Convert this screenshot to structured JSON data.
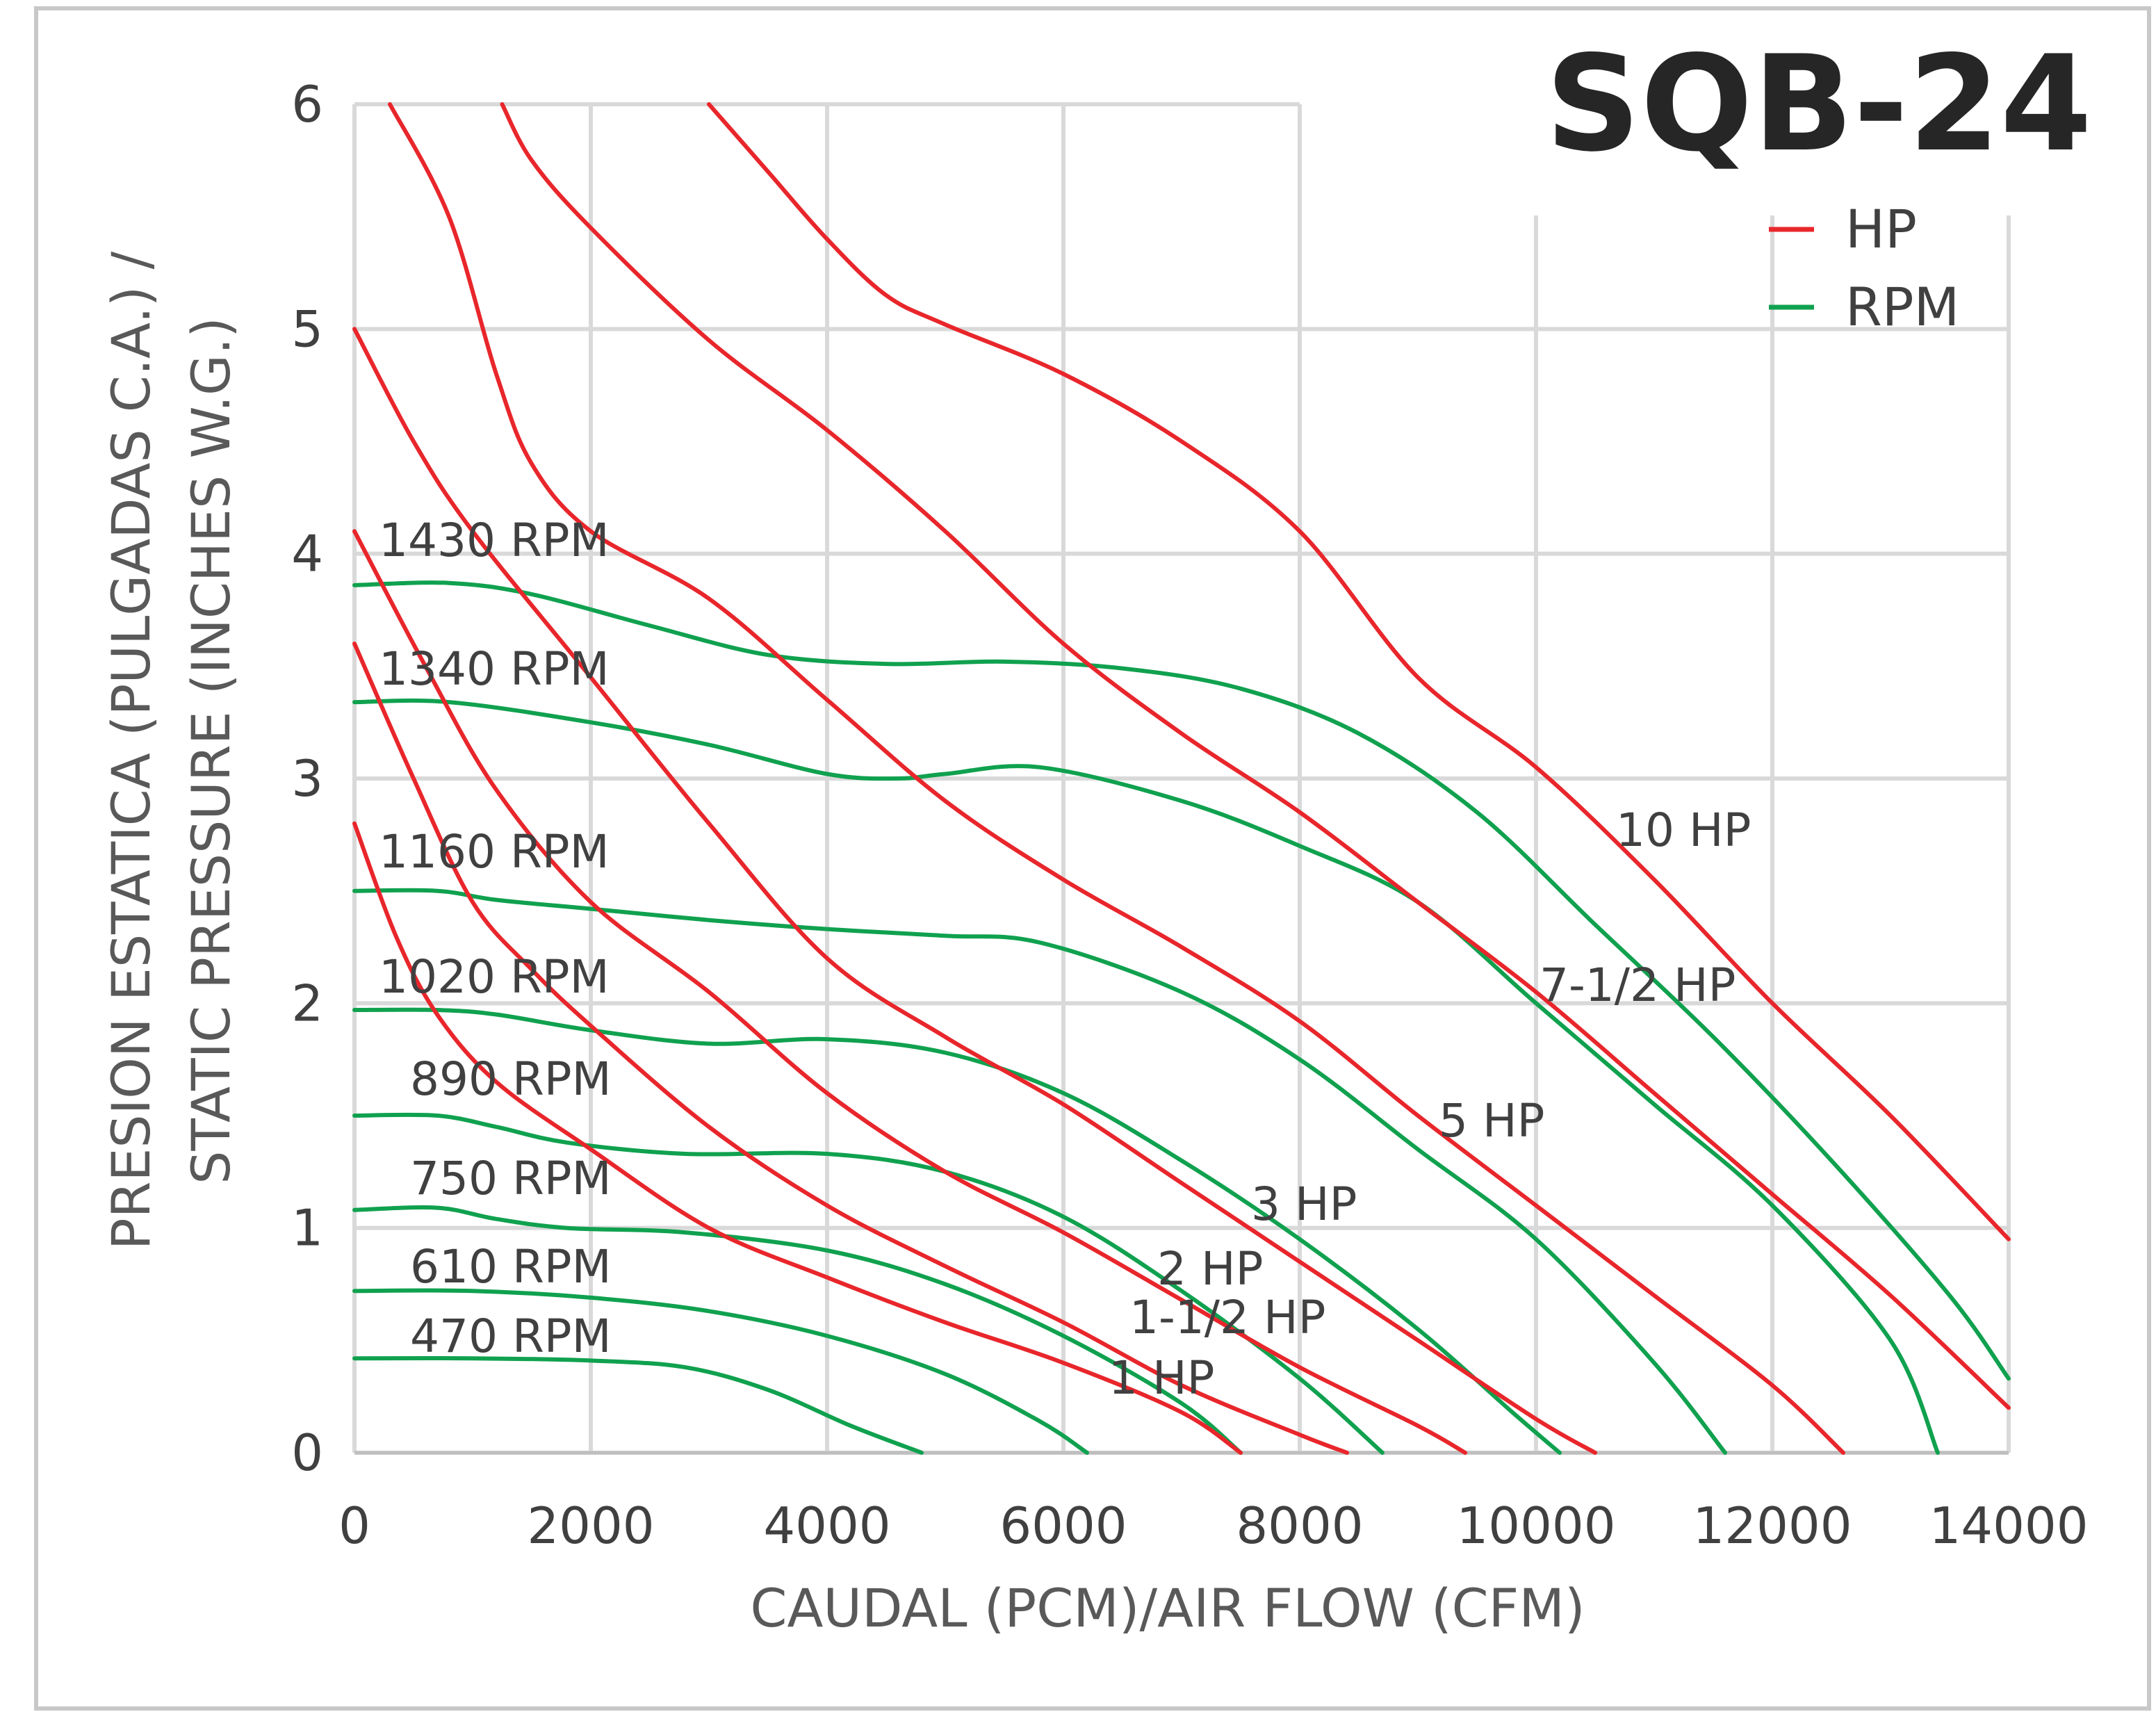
{
  "chart_data": {
    "type": "line",
    "title": "SQB-24",
    "xlabel": "CAUDAL (PCM)/AIR FLOW (CFM)",
    "ylabel_lines": [
      "PRESION ESTATICA (PULGADAS C.A.) /",
      "STATIC PRESSURE (INCHES W.G.)"
    ],
    "xlim": [
      0,
      14000
    ],
    "ylim": [
      0,
      6
    ],
    "x_ticks": [
      0,
      2000,
      4000,
      6000,
      8000,
      10000,
      12000,
      14000
    ],
    "y_ticks": [
      0,
      1,
      2,
      3,
      4,
      5,
      6
    ],
    "grid": true,
    "legend_position": "top-right",
    "legend": [
      {
        "name": "HP",
        "color": "#e8262b"
      },
      {
        "name": "RPM",
        "color": "#10a14f"
      }
    ],
    "hp_series": [
      {
        "name": "1 HP",
        "label": "1 HP",
        "points": [
          [
            0,
            2.8
          ],
          [
            350,
            2.3
          ],
          [
            700,
            1.95
          ],
          [
            1200,
            1.65
          ],
          [
            2000,
            1.35
          ],
          [
            3000,
            1.0
          ],
          [
            4000,
            0.78
          ],
          [
            5000,
            0.58
          ],
          [
            6000,
            0.4
          ],
          [
            7000,
            0.18
          ],
          [
            7500,
            0.0
          ]
        ]
      },
      {
        "name": "1-1/2 HP",
        "label": "1-1/2 HP",
        "points": [
          [
            0,
            3.6
          ],
          [
            500,
            3.0
          ],
          [
            1000,
            2.45
          ],
          [
            1500,
            2.15
          ],
          [
            2000,
            1.9
          ],
          [
            3000,
            1.45
          ],
          [
            4000,
            1.1
          ],
          [
            5000,
            0.83
          ],
          [
            6000,
            0.58
          ],
          [
            7000,
            0.3
          ],
          [
            8000,
            0.08
          ],
          [
            8400,
            0.0
          ]
        ]
      },
      {
        "name": "2 HP",
        "label": "2 HP",
        "points": [
          [
            0,
            4.1
          ],
          [
            600,
            3.5
          ],
          [
            1200,
            2.95
          ],
          [
            2000,
            2.45
          ],
          [
            3000,
            2.05
          ],
          [
            4000,
            1.6
          ],
          [
            5000,
            1.25
          ],
          [
            6000,
            0.98
          ],
          [
            7000,
            0.68
          ],
          [
            8000,
            0.38
          ],
          [
            9000,
            0.12
          ],
          [
            9400,
            0.0
          ]
        ]
      },
      {
        "name": "3 HP",
        "label": "3 HP",
        "points": [
          [
            0,
            5.0
          ],
          [
            500,
            4.5
          ],
          [
            1000,
            4.1
          ],
          [
            2000,
            3.45
          ],
          [
            3000,
            2.8
          ],
          [
            4000,
            2.2
          ],
          [
            5000,
            1.85
          ],
          [
            6000,
            1.55
          ],
          [
            7000,
            1.2
          ],
          [
            8000,
            0.85
          ],
          [
            9000,
            0.5
          ],
          [
            10000,
            0.15
          ],
          [
            10500,
            0.0
          ]
        ]
      },
      {
        "name": "5 HP",
        "label": "5 HP",
        "points": [
          [
            300,
            6.0
          ],
          [
            800,
            5.5
          ],
          [
            1200,
            4.8
          ],
          [
            1500,
            4.4
          ],
          [
            2000,
            4.1
          ],
          [
            3000,
            3.8
          ],
          [
            4000,
            3.35
          ],
          [
            5000,
            2.9
          ],
          [
            6000,
            2.55
          ],
          [
            7000,
            2.25
          ],
          [
            8000,
            1.92
          ],
          [
            9000,
            1.5
          ],
          [
            10000,
            1.1
          ],
          [
            11000,
            0.7
          ],
          [
            12000,
            0.3
          ],
          [
            12600,
            0.0
          ]
        ]
      },
      {
        "name": "7-1/2 HP",
        "label": "7-1/2 HP",
        "points": [
          [
            1250,
            6.0
          ],
          [
            1500,
            5.75
          ],
          [
            2000,
            5.45
          ],
          [
            3000,
            4.95
          ],
          [
            4000,
            4.55
          ],
          [
            5000,
            4.1
          ],
          [
            6000,
            3.6
          ],
          [
            7000,
            3.2
          ],
          [
            8000,
            2.85
          ],
          [
            9000,
            2.45
          ],
          [
            10000,
            2.05
          ],
          [
            11000,
            1.6
          ],
          [
            12000,
            1.15
          ],
          [
            13000,
            0.7
          ],
          [
            14000,
            0.2
          ]
        ]
      },
      {
        "name": "10 HP",
        "label": "10 HP",
        "points": [
          [
            3000,
            6.0
          ],
          [
            3500,
            5.7
          ],
          [
            4000,
            5.4
          ],
          [
            4500,
            5.15
          ],
          [
            5000,
            5.02
          ],
          [
            6000,
            4.8
          ],
          [
            7000,
            4.5
          ],
          [
            8000,
            4.1
          ],
          [
            9000,
            3.45
          ],
          [
            10000,
            3.05
          ],
          [
            11000,
            2.55
          ],
          [
            12000,
            2.0
          ],
          [
            13000,
            1.5
          ],
          [
            14000,
            0.95
          ]
        ]
      }
    ],
    "rpm_series": [
      {
        "name": "470 RPM",
        "label": "470 RPM",
        "points": [
          [
            0,
            0.42
          ],
          [
            1000,
            0.42
          ],
          [
            2000,
            0.41
          ],
          [
            2800,
            0.38
          ],
          [
            3500,
            0.28
          ],
          [
            4200,
            0.12
          ],
          [
            4800,
            0.0
          ]
        ]
      },
      {
        "name": "610 RPM",
        "label": "610 RPM",
        "points": [
          [
            0,
            0.72
          ],
          [
            1000,
            0.72
          ],
          [
            2000,
            0.69
          ],
          [
            3000,
            0.63
          ],
          [
            4000,
            0.52
          ],
          [
            5000,
            0.35
          ],
          [
            5800,
            0.14
          ],
          [
            6200,
            0.0
          ]
        ]
      },
      {
        "name": "750 RPM",
        "label": "750 RPM",
        "points": [
          [
            0,
            1.08
          ],
          [
            700,
            1.09
          ],
          [
            1200,
            1.04
          ],
          [
            1800,
            1.0
          ],
          [
            2800,
            0.98
          ],
          [
            4000,
            0.9
          ],
          [
            5000,
            0.75
          ],
          [
            6000,
            0.52
          ],
          [
            7000,
            0.22
          ],
          [
            7500,
            0.0
          ]
        ]
      },
      {
        "name": "890 RPM",
        "label": "890 RPM",
        "points": [
          [
            0,
            1.5
          ],
          [
            700,
            1.5
          ],
          [
            1200,
            1.45
          ],
          [
            1800,
            1.38
          ],
          [
            2800,
            1.33
          ],
          [
            4000,
            1.33
          ],
          [
            5000,
            1.25
          ],
          [
            6000,
            1.05
          ],
          [
            7000,
            0.72
          ],
          [
            8000,
            0.33
          ],
          [
            8700,
            0.0
          ]
        ]
      },
      {
        "name": "1020 RPM",
        "label": "1020 RPM",
        "points": [
          [
            0,
            1.97
          ],
          [
            700,
            1.97
          ],
          [
            1200,
            1.95
          ],
          [
            2000,
            1.88
          ],
          [
            3000,
            1.82
          ],
          [
            4000,
            1.84
          ],
          [
            5000,
            1.78
          ],
          [
            6000,
            1.6
          ],
          [
            7000,
            1.3
          ],
          [
            8000,
            0.95
          ],
          [
            9000,
            0.55
          ],
          [
            9800,
            0.18
          ],
          [
            10200,
            0.0
          ]
        ]
      },
      {
        "name": "1160 RPM",
        "label": "1160 RPM",
        "points": [
          [
            0,
            2.5
          ],
          [
            700,
            2.5
          ],
          [
            1200,
            2.46
          ],
          [
            2000,
            2.42
          ],
          [
            3000,
            2.37
          ],
          [
            4000,
            2.33
          ],
          [
            5000,
            2.3
          ],
          [
            5800,
            2.27
          ],
          [
            7000,
            2.05
          ],
          [
            8000,
            1.75
          ],
          [
            9000,
            1.35
          ],
          [
            10000,
            0.95
          ],
          [
            11000,
            0.4
          ],
          [
            11600,
            0.0
          ]
        ]
      },
      {
        "name": "1340 RPM",
        "label": "1340 RPM",
        "points": [
          [
            0,
            3.34
          ],
          [
            800,
            3.34
          ],
          [
            2000,
            3.25
          ],
          [
            3000,
            3.15
          ],
          [
            4000,
            3.02
          ],
          [
            4600,
            3.0
          ],
          [
            5000,
            3.02
          ],
          [
            5800,
            3.05
          ],
          [
            7000,
            2.9
          ],
          [
            8000,
            2.7
          ],
          [
            9000,
            2.45
          ],
          [
            10000,
            2.0
          ],
          [
            11000,
            1.55
          ],
          [
            12000,
            1.1
          ],
          [
            13000,
            0.5
          ],
          [
            13400,
            0.0
          ]
        ]
      },
      {
        "name": "1430 RPM",
        "label": "1430 RPM",
        "points": [
          [
            0,
            3.86
          ],
          [
            800,
            3.87
          ],
          [
            1500,
            3.82
          ],
          [
            2500,
            3.68
          ],
          [
            3500,
            3.55
          ],
          [
            4500,
            3.51
          ],
          [
            5500,
            3.52
          ],
          [
            6500,
            3.49
          ],
          [
            7500,
            3.4
          ],
          [
            8500,
            3.2
          ],
          [
            9500,
            2.85
          ],
          [
            10500,
            2.35
          ],
          [
            11500,
            1.85
          ],
          [
            12500,
            1.3
          ],
          [
            13500,
            0.7
          ],
          [
            14000,
            0.33
          ]
        ]
      }
    ]
  }
}
